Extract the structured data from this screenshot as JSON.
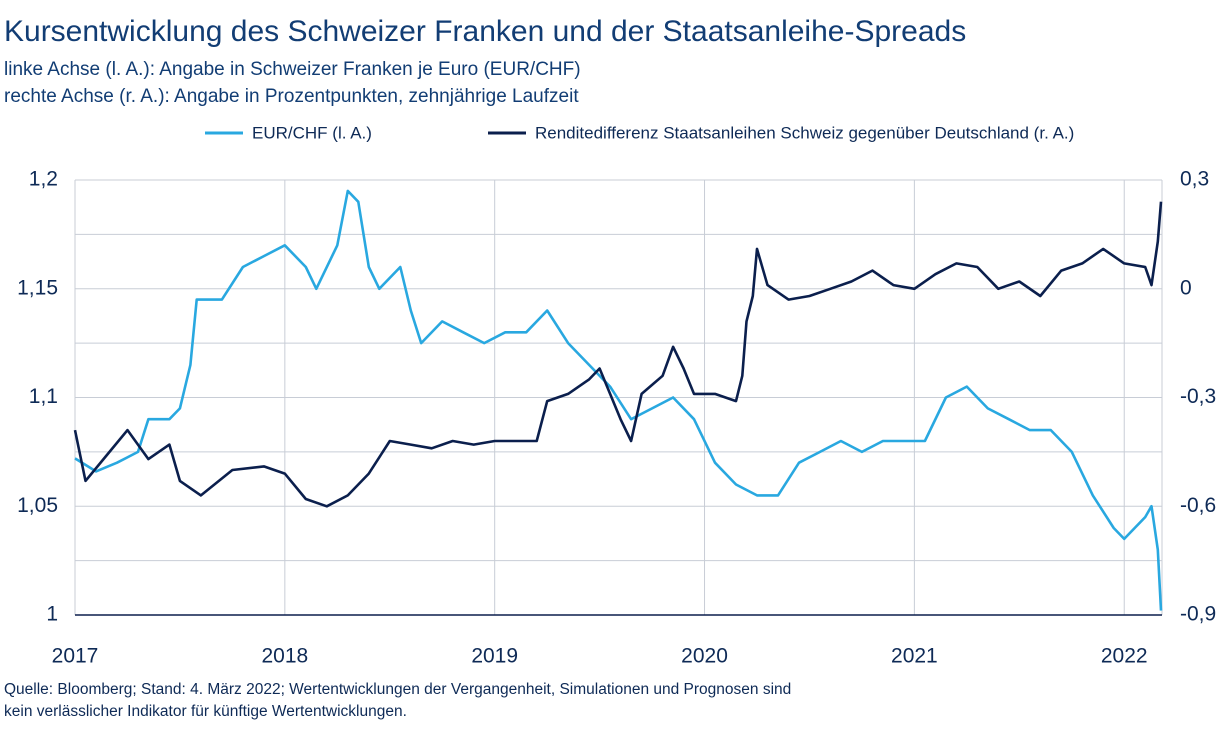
{
  "chart_data": {
    "type": "line",
    "title": "Kursentwicklung des Schweizer Franken und der Staatsanleihe-Spreads",
    "subtitle": [
      "linke Achse (l. A.): Angabe in Schweizer Franken je Euro (EUR/CHF)",
      "rechte Achse (r. A.): Angabe in Prozentpunkten, zehnjährige Laufzeit"
    ],
    "source": [
      "Quelle: Bloomberg; Stand: 4. März 2022; Wertentwicklungen der Vergangenheit, Simulationen und Prognosen sind",
      "kein verlässlicher Indikator für künftige Wertentwicklungen."
    ],
    "xlim": [
      2017,
      2022.18
    ],
    "xticks": [
      2017,
      2018,
      2019,
      2020,
      2021,
      2022
    ],
    "ylim": [
      1,
      1.2
    ],
    "yticks": [
      1,
      {
        "value": 1.05,
        "label": "1,05"
      },
      {
        "value": 1.1,
        "label": "1,1"
      },
      {
        "value": 1.15,
        "label": "1,15"
      },
      {
        "value": 1.2,
        "label": "1,2"
      }
    ],
    "y_minor_ticks": [
      1.025,
      1.075,
      1.125,
      1.175
    ],
    "y2lim": [
      -0.9,
      0.3
    ],
    "y2ticks": [
      {
        "value": -0.9,
        "label": "-0,9"
      },
      {
        "value": -0.6,
        "label": "-0,6"
      },
      {
        "value": -0.3,
        "label": "-0,3"
      },
      0,
      {
        "value": 0.3,
        "label": "0,3"
      }
    ],
    "grid": true,
    "series": [
      {
        "name": "EUR/CHF (l. A.)",
        "color": "#29a8e0",
        "axis": "y",
        "x": [
          2017.0,
          2017.1,
          2017.2,
          2017.3,
          2017.35,
          2017.45,
          2017.5,
          2017.55,
          2017.58,
          2017.7,
          2017.8,
          2017.9,
          2018.0,
          2018.1,
          2018.15,
          2018.25,
          2018.3,
          2018.35,
          2018.4,
          2018.45,
          2018.55,
          2018.6,
          2018.65,
          2018.75,
          2018.85,
          2018.95,
          2019.05,
          2019.15,
          2019.25,
          2019.35,
          2019.45,
          2019.55,
          2019.65,
          2019.75,
          2019.85,
          2019.95,
          2020.05,
          2020.15,
          2020.25,
          2020.35,
          2020.45,
          2020.55,
          2020.65,
          2020.75,
          2020.85,
          2020.95,
          2021.05,
          2021.15,
          2021.25,
          2021.35,
          2021.45,
          2021.55,
          2021.65,
          2021.75,
          2021.85,
          2021.95,
          2022.0,
          2022.05,
          2022.1,
          2022.13,
          2022.16,
          2022.175
        ],
        "values": [
          1.072,
          1.066,
          1.07,
          1.075,
          1.09,
          1.09,
          1.095,
          1.115,
          1.145,
          1.145,
          1.16,
          1.165,
          1.17,
          1.16,
          1.15,
          1.17,
          1.195,
          1.19,
          1.16,
          1.15,
          1.16,
          1.14,
          1.125,
          1.135,
          1.13,
          1.125,
          1.13,
          1.13,
          1.14,
          1.125,
          1.115,
          1.105,
          1.09,
          1.095,
          1.1,
          1.09,
          1.07,
          1.06,
          1.055,
          1.055,
          1.07,
          1.075,
          1.08,
          1.075,
          1.08,
          1.08,
          1.08,
          1.1,
          1.105,
          1.095,
          1.09,
          1.085,
          1.085,
          1.075,
          1.055,
          1.04,
          1.035,
          1.04,
          1.045,
          1.05,
          1.03,
          1.002
        ]
      },
      {
        "name": "Renditedifferenz Staatsanleihen Schweiz gegenüber Deutschland (r. A.)",
        "color": "#0b1f4d",
        "axis": "y2",
        "x": [
          2017.0,
          2017.05,
          2017.15,
          2017.25,
          2017.35,
          2017.45,
          2017.5,
          2017.6,
          2017.75,
          2017.9,
          2018.0,
          2018.1,
          2018.2,
          2018.3,
          2018.4,
          2018.5,
          2018.6,
          2018.7,
          2018.8,
          2018.9,
          2019.0,
          2019.1,
          2019.2,
          2019.25,
          2019.35,
          2019.45,
          2019.5,
          2019.55,
          2019.6,
          2019.65,
          2019.7,
          2019.8,
          2019.85,
          2019.9,
          2019.95,
          2020.05,
          2020.15,
          2020.18,
          2020.2,
          2020.23,
          2020.25,
          2020.3,
          2020.4,
          2020.5,
          2020.6,
          2020.7,
          2020.8,
          2020.9,
          2021.0,
          2021.1,
          2021.2,
          2021.3,
          2021.4,
          2021.5,
          2021.6,
          2021.7,
          2021.8,
          2021.9,
          2022.0,
          2022.1,
          2022.13,
          2022.16,
          2022.175
        ],
        "values": [
          -0.39,
          -0.53,
          -0.46,
          -0.39,
          -0.47,
          -0.43,
          -0.53,
          -0.57,
          -0.5,
          -0.49,
          -0.51,
          -0.58,
          -0.6,
          -0.57,
          -0.51,
          -0.42,
          -0.43,
          -0.44,
          -0.42,
          -0.43,
          -0.42,
          -0.42,
          -0.42,
          -0.31,
          -0.29,
          -0.25,
          -0.22,
          -0.29,
          -0.36,
          -0.42,
          -0.29,
          -0.24,
          -0.16,
          -0.22,
          -0.29,
          -0.29,
          -0.31,
          -0.24,
          -0.09,
          -0.02,
          0.11,
          0.01,
          -0.03,
          -0.02,
          0,
          0.02,
          0.05,
          0.01,
          0,
          0.04,
          0.07,
          0.06,
          0,
          0.02,
          -0.02,
          0.05,
          0.07,
          0.11,
          0.07,
          0.06,
          0.01,
          0.13,
          0.24
        ]
      }
    ]
  }
}
